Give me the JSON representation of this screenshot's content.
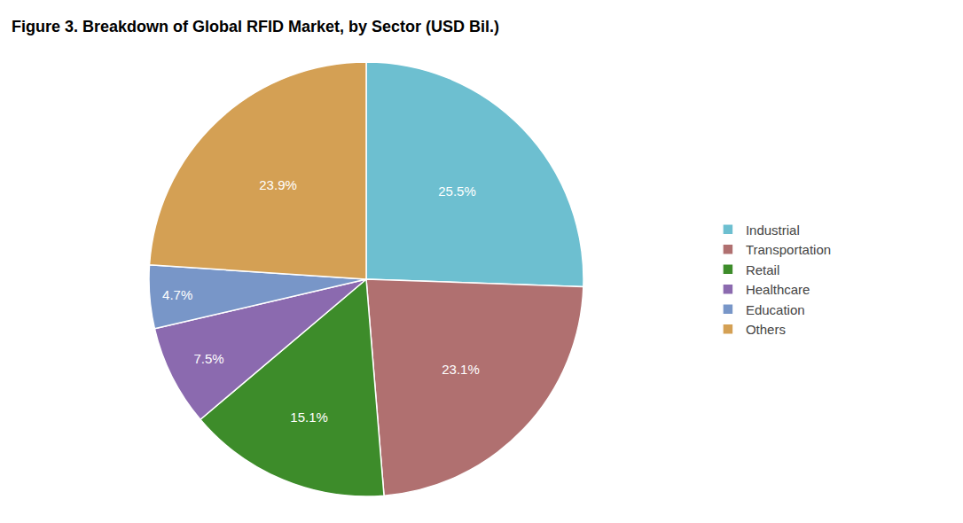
{
  "chart_data": {
    "type": "pie",
    "title": "Figure 3. Breakdown of Global RFID Market, by Sector (USD Bil.)",
    "categories": [
      "Industrial",
      "Transportation",
      "Retail",
      "Healthcare",
      "Education",
      "Others"
    ],
    "values": [
      25.5,
      23.1,
      15.1,
      7.5,
      4.7,
      23.9
    ],
    "value_labels": [
      "25.5%",
      "23.1%",
      "15.1%",
      "7.5%",
      "4.7%",
      "23.9%"
    ],
    "colors": [
      "#6dbfd0",
      "#b07070",
      "#3d8c2a",
      "#8b6aaf",
      "#7896c8",
      "#d4a054"
    ],
    "data_labels": true,
    "legend": "right"
  }
}
